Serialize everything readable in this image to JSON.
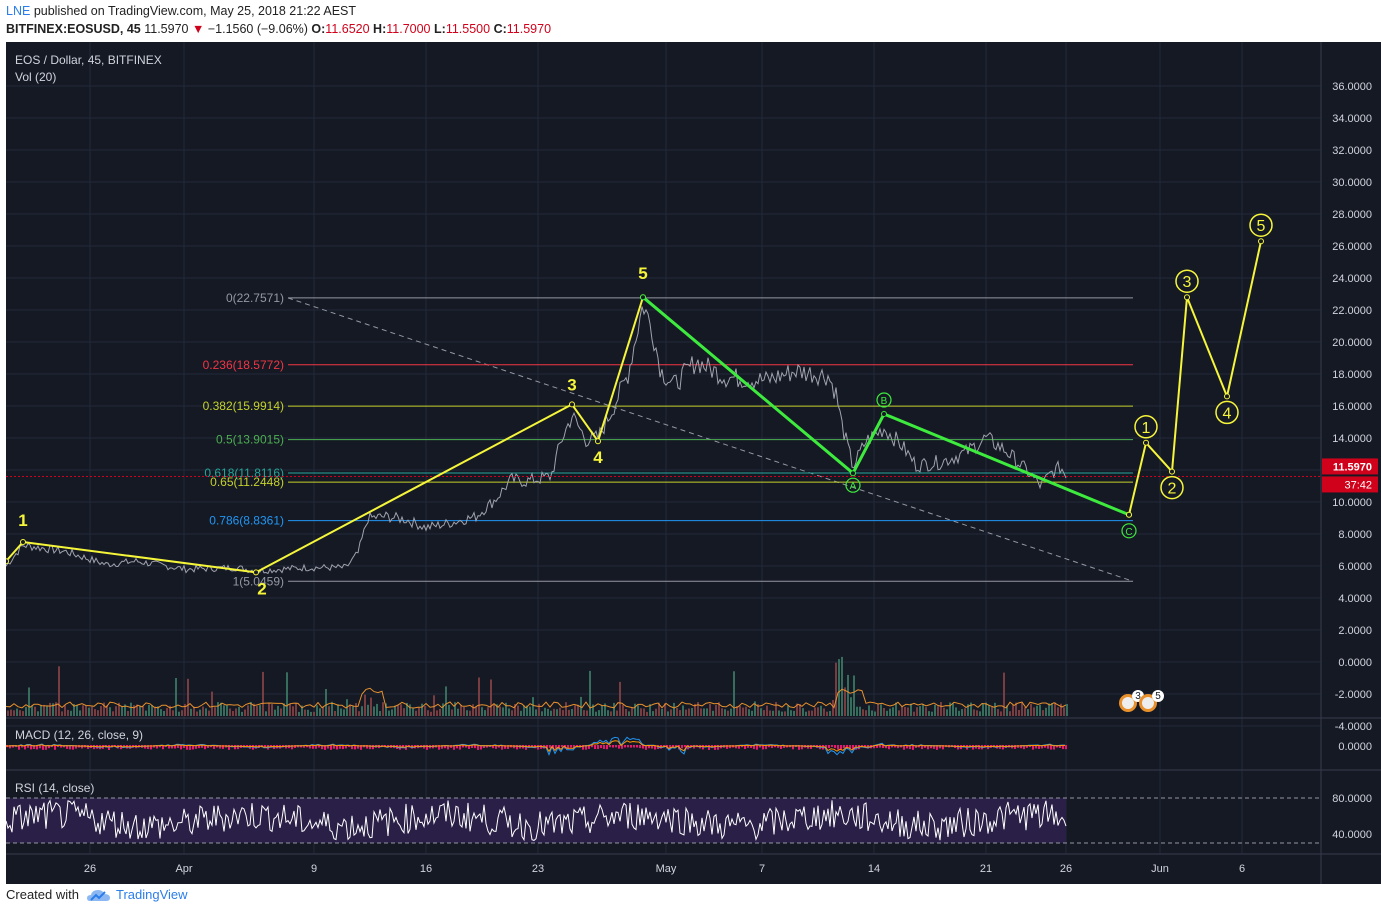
{
  "header": {
    "author": "LNE",
    "published": "published on TradingView.com, May 25, 2018 21:22 AEST",
    "symbol": "BITFINEX:EOSUSD, 45",
    "last": "11.5970",
    "change": "−1.1560 (−9.06%)",
    "o_label": "O:",
    "o": "11.6520",
    "h_label": "H:",
    "h": "11.7000",
    "l_label": "L:",
    "l": "11.5500",
    "c_label": "C:",
    "c": "11.5970"
  },
  "footer": {
    "created": "Created with",
    "brand": "TradingView"
  },
  "colors": {
    "background": "#151924",
    "price": "#a0a3ad",
    "yellow_wave": "#f5f53a",
    "green_wave": "#3dea3d",
    "last_price": "#d0021b"
  },
  "chart_data": {
    "type": "line",
    "title": "EOS / Dollar, 45, BITFINEX",
    "volume_label": "Vol (20)",
    "macd_label": "MACD (12, 26, close, 9)",
    "rsi_label": "RSI (14, close)",
    "ylim": [
      -5.5,
      37
    ],
    "y_ticks": [
      "36.0000",
      "34.0000",
      "32.0000",
      "30.0000",
      "28.0000",
      "26.0000",
      "24.0000",
      "22.0000",
      "20.0000",
      "18.0000",
      "16.0000",
      "14.0000",
      "12.0000",
      "10.0000",
      "8.0000",
      "6.0000",
      "4.0000",
      "2.0000",
      "0.0000",
      "-2.0000",
      "-4.0000"
    ],
    "y_tick_values": [
      36,
      34,
      32,
      30,
      28,
      26,
      24,
      22,
      20,
      18,
      16,
      14,
      12,
      10,
      8,
      6,
      4,
      2,
      0,
      -2,
      -4
    ],
    "x_ticks": [
      "26",
      "Apr",
      "9",
      "16",
      "23",
      "May",
      "7",
      "14",
      "21",
      "26",
      "Jun",
      "6"
    ],
    "x_tick_pos": [
      84,
      178,
      308,
      420,
      532,
      660,
      756,
      868,
      980,
      1060,
      1154,
      1236
    ],
    "last_price_label": "11.5970",
    "last_price": 11.597,
    "countdown": "37:42",
    "macd_tick": "0.0000",
    "rsi_ticks": [
      "80.0000",
      "40.0000"
    ],
    "rsi_tick_values": [
      80,
      40
    ],
    "fib_levels": [
      {
        "label": "0(22.7571)",
        "value": 22.7571,
        "color": "#9598a1"
      },
      {
        "label": "0.236(18.5772)",
        "value": 18.5772,
        "color": "#f23645"
      },
      {
        "label": "0.382(15.9914)",
        "value": 15.9914,
        "color": "#c5d22b"
      },
      {
        "label": "0.5(13.9015)",
        "value": 13.9015,
        "color": "#4caf50"
      },
      {
        "label": "0.618(11.8116)",
        "value": 11.8116,
        "color": "#26a69a"
      },
      {
        "label": "0.65(11.2448)",
        "value": 11.2448,
        "color": "#c5d22b"
      },
      {
        "label": "0.786(8.8361)",
        "value": 8.8361,
        "color": "#2196f3"
      },
      {
        "label": "1(5.0459)",
        "value": 5.0459,
        "color": "#9598a1"
      }
    ],
    "yellow_impulse": {
      "points": [
        [
          0,
          6.3
        ],
        [
          17,
          7.5
        ],
        [
          250,
          5.6
        ],
        [
          566,
          16.1
        ],
        [
          592,
          13.8
        ],
        [
          637,
          22.8
        ]
      ],
      "labels": [
        "1",
        "2",
        "3",
        "4",
        "5"
      ]
    },
    "green_correction": {
      "points": [
        [
          637,
          22.8
        ],
        [
          847,
          11.8
        ],
        [
          878,
          15.5
        ],
        [
          1123,
          9.2
        ]
      ],
      "labels": [
        "A",
        "B",
        "C"
      ]
    },
    "projection": {
      "points": [
        [
          1123,
          9.2
        ],
        [
          1140,
          13.7
        ],
        [
          1166,
          11.9
        ],
        [
          1181,
          22.8
        ],
        [
          1221,
          16.6
        ],
        [
          1255,
          26.3
        ]
      ],
      "labels": [
        "1",
        "2",
        "3",
        "4",
        "5"
      ]
    },
    "badges": [
      "3",
      "5"
    ]
  }
}
